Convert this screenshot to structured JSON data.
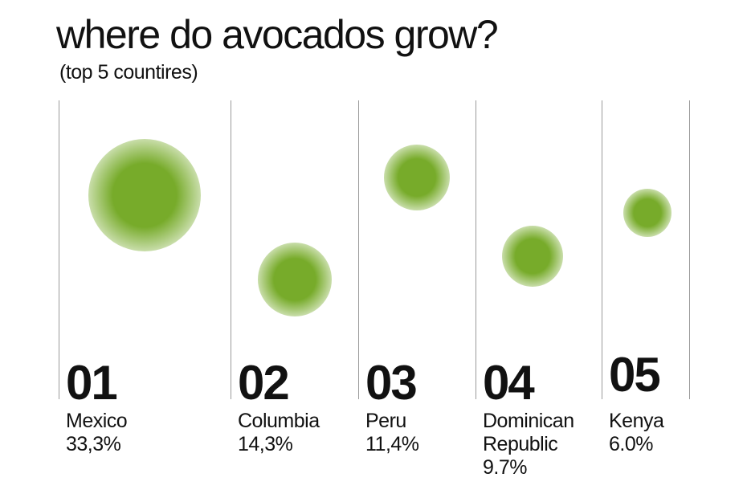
{
  "title": "where do avocados grow?",
  "subtitle": "(top 5 countires)",
  "colors": {
    "avocado": "#77ab2a",
    "divider": "#9a9a9a",
    "text": "#111111"
  },
  "chart_data": {
    "type": "scatter",
    "title": "where do avocados grow?",
    "subtitle": "(top 5 countires)",
    "xlabel": "",
    "ylabel": "",
    "grid": false,
    "categories": [
      "Mexico",
      "Columbia",
      "Peru",
      "Dominican Republic",
      "Kenya"
    ],
    "series": [
      {
        "points": [
          {
            "rank": "01",
            "country": "Mexico",
            "value_label": "33,3%",
            "value": 33.3
          },
          {
            "rank": "02",
            "country": "Columbia",
            "value_label": "14,3%",
            "value": 14.3
          },
          {
            "rank": "03",
            "country": "Peru",
            "value_label": "11,4%",
            "value": 11.4
          },
          {
            "rank": "04",
            "country": "Dominican Republic",
            "value_label": "9.7%",
            "value": 9.7
          },
          {
            "rank": "05",
            "country": "Kenya",
            "value_label": "6.0%",
            "value": 6.0
          }
        ]
      }
    ]
  }
}
